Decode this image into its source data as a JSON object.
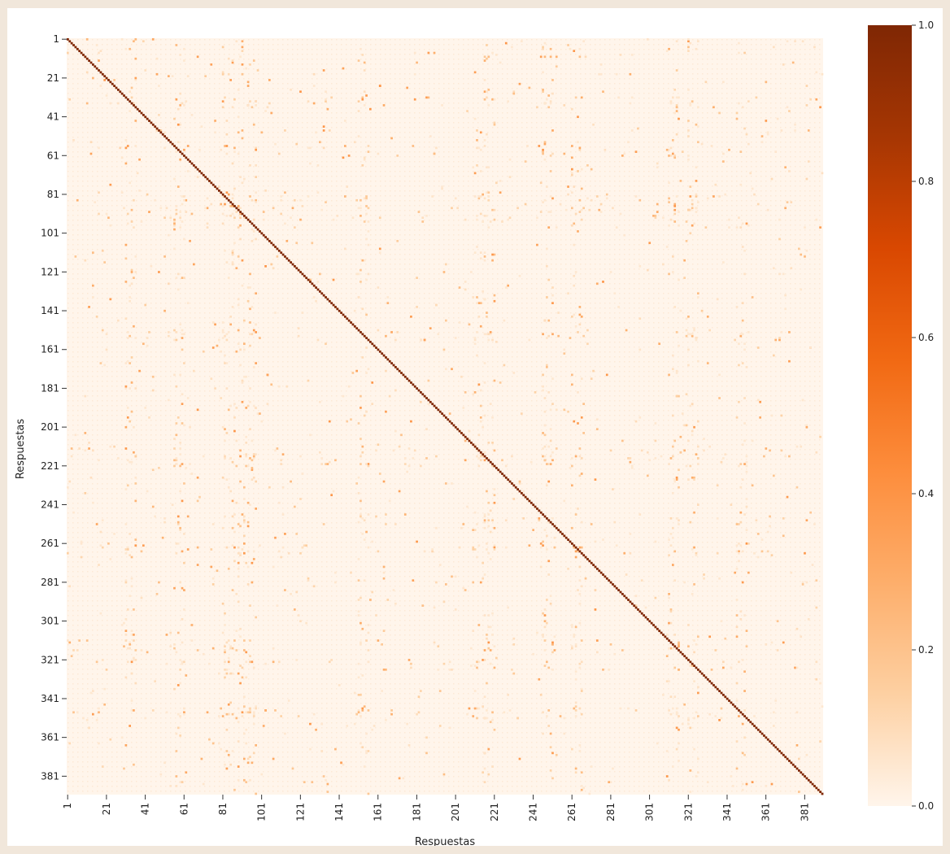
{
  "chart_data": {
    "type": "heatmap",
    "title": "",
    "xlabel": "Respuestas",
    "ylabel": "Respuestas",
    "n": 390,
    "x_tick_labels": [
      "1",
      "21",
      "41",
      "61",
      "81",
      "101",
      "121",
      "141",
      "161",
      "181",
      "201",
      "221",
      "241",
      "261",
      "281",
      "301",
      "321",
      "341",
      "361",
      "381"
    ],
    "y_tick_labels": [
      "1",
      "21",
      "41",
      "61",
      "81",
      "101",
      "121",
      "141",
      "161",
      "181",
      "201",
      "221",
      "241",
      "261",
      "281",
      "301",
      "321",
      "341",
      "361",
      "381"
    ],
    "value_range": [
      0.0,
      1.0
    ],
    "diagonal_value": 1.0,
    "off_diagonal_typical": 0.05,
    "colormap": "Oranges",
    "colors": [
      "#fff5eb",
      "#fdd0a2",
      "#fdae6b",
      "#fd8d3c",
      "#f16913",
      "#d94801",
      "#a63603",
      "#7f2704"
    ],
    "colorbar": {
      "ticks": [
        "0.0",
        "0.2",
        "0.4",
        "0.6",
        "0.8",
        "1.0"
      ]
    }
  }
}
